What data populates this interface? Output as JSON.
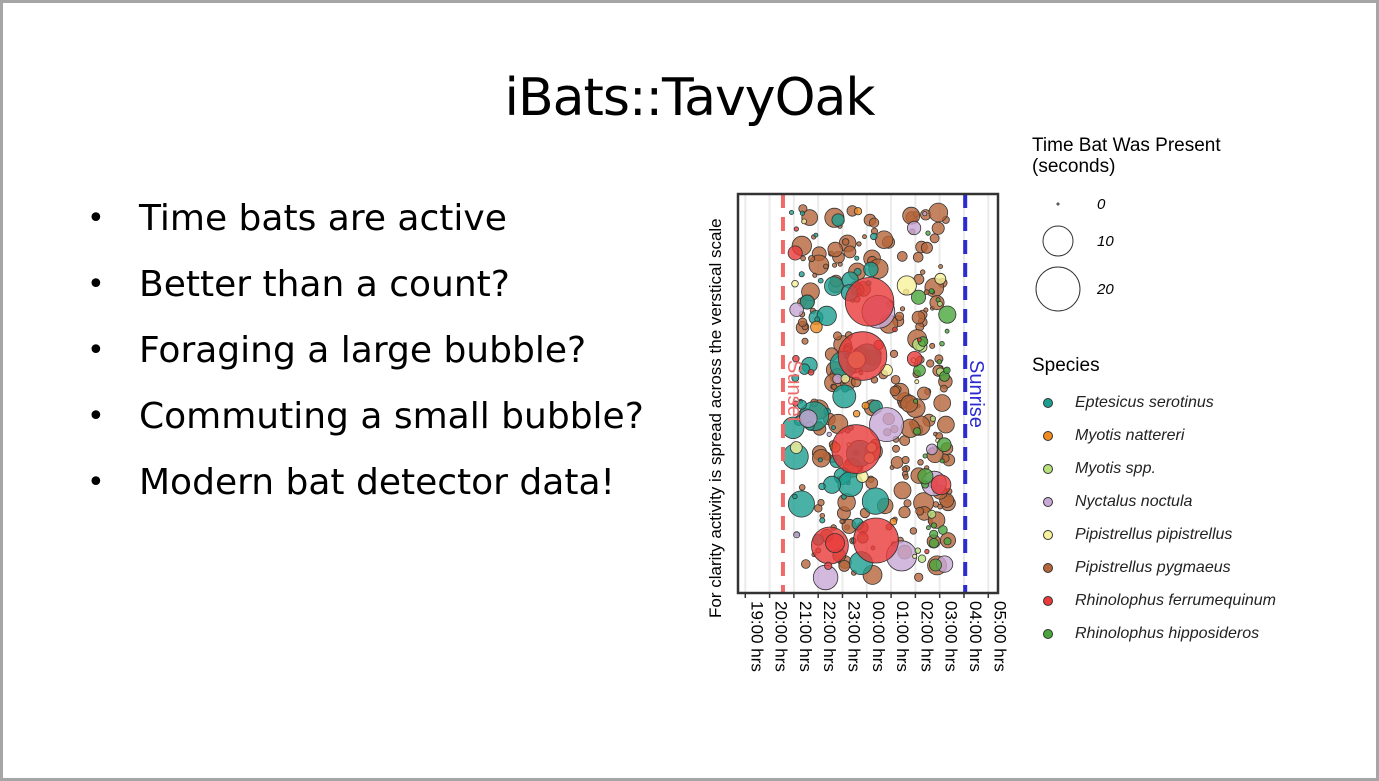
{
  "slide": {
    "title": "iBats::TavyOak",
    "bullets": [
      "Time bats are active",
      "Better than a count?",
      "Foraging a large bubble?",
      "Commuting a small bubble?",
      "Modern bat detector data!"
    ]
  },
  "chart_data": {
    "type": "scatter",
    "ylabel": "For clarity activity is spread across the verstical scale",
    "x_ticks": [
      "19:00 hrs",
      "20:00 hrs",
      "21:00 hrs",
      "22:00 hrs",
      "23:00 hrs",
      "00:00 hrs",
      "01:00 hrs",
      "02:00 hrs",
      "03:00 hrs",
      "04:00 hrs",
      "05:00 hrs"
    ],
    "xlim_hours": [
      18.7,
      29.4
    ],
    "vlines": [
      {
        "label": "Sunset",
        "hour": 20.55,
        "color": "#f06a6a"
      },
      {
        "label": "Sunrise",
        "hour": 28.05,
        "color": "#2b2bcf"
      }
    ],
    "size_legend": {
      "title_line1": "Time Bat Was Present",
      "title_line2": "(seconds)",
      "values": [
        "0",
        "10",
        "20"
      ]
    },
    "species_legend_title": "Species",
    "series": [
      {
        "name": "Eptesicus serotinus",
        "color": "#1b9e8f",
        "hour_range": [
          20.9,
          24.6
        ],
        "n": 55,
        "max_size": 13
      },
      {
        "name": "Myotis nattereri",
        "color": "#f08c1e",
        "hour_range": [
          20.8,
          25.5
        ],
        "n": 6,
        "max_size": 5
      },
      {
        "name": "Myotis spp.",
        "color": "#b5e07a",
        "hour_range": [
          26.0,
          27.3
        ],
        "n": 8,
        "max_size": 5
      },
      {
        "name": "Nyctalus noctula",
        "color": "#c8a8d6",
        "hour_range": [
          20.6,
          27.4
        ],
        "n": 14,
        "max_size": 16
      },
      {
        "name": "Pipistrellus pipistrellus",
        "color": "#f7f39a",
        "hour_range": [
          20.7,
          27.2
        ],
        "n": 16,
        "max_size": 8
      },
      {
        "name": "Pipistrellus pygmaeus",
        "color": "#b5653a",
        "hour_range": [
          21.3,
          27.4
        ],
        "n": 240,
        "max_size": 8
      },
      {
        "name": "Rhinolophus ferrumequinum",
        "color": "#e83a3a",
        "hour_range": [
          20.5,
          27.4
        ],
        "n": 18,
        "max_size": 24
      },
      {
        "name": "Rhinolophus hipposideros",
        "color": "#4aa63c",
        "hour_range": [
          26.0,
          27.4
        ],
        "n": 28,
        "max_size": 7
      }
    ]
  }
}
